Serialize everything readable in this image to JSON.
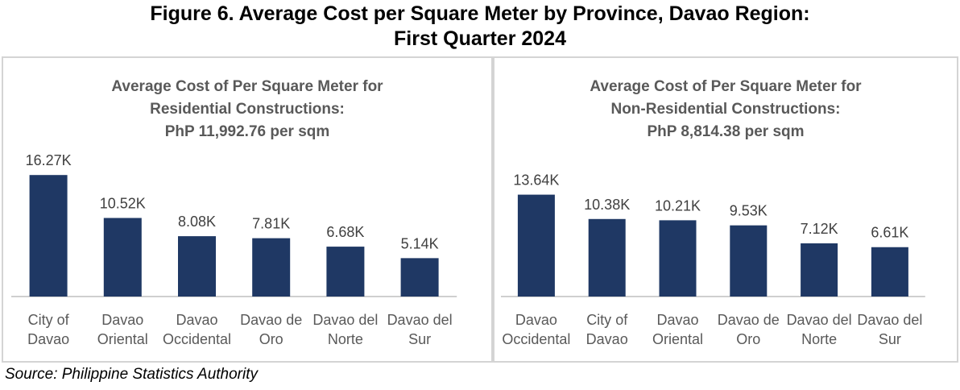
{
  "figure": {
    "title_line1": "Figure 6. Average Cost per Square Meter by Province, Davao Region:",
    "title_line2": "First Quarter 2024",
    "source": "Source: Philippine Statistics Authority"
  },
  "chart_data": [
    {
      "type": "bar",
      "title": [
        "Average Cost of Per Square Meter for",
        "Residential Constructions:",
        "PhP 11,992.76 per sqm"
      ],
      "categories": [
        [
          "City of",
          "Davao"
        ],
        [
          "Davao",
          "Oriental"
        ],
        [
          "Davao",
          "Occidental"
        ],
        [
          "Davao de",
          "Oro"
        ],
        [
          "Davao del",
          "Norte"
        ],
        [
          "Davao del",
          "Sur"
        ]
      ],
      "values": [
        16270,
        10520,
        8080,
        7810,
        6680,
        5140
      ],
      "data_labels": [
        "16.27K",
        "10.52K",
        "8.08K",
        "7.81K",
        "6.68K",
        "5.14K"
      ],
      "ylim": [
        0,
        20500
      ],
      "color": "#1f3864",
      "grid": false,
      "legend": "none"
    },
    {
      "type": "bar",
      "title": [
        "Average Cost of Per Square Meter for",
        "Non-Residential Constructions:",
        "PhP 8,814.38 per sqm"
      ],
      "categories": [
        [
          "Davao",
          "Occidental"
        ],
        [
          "City of",
          "Davao"
        ],
        [
          "Davao",
          "Oriental"
        ],
        [
          "Davao de",
          "Oro"
        ],
        [
          "Davao del",
          "Norte"
        ],
        [
          "Davao del",
          "Sur"
        ]
      ],
      "values": [
        13640,
        10380,
        10210,
        9530,
        7120,
        6610
      ],
      "data_labels": [
        "13.64K",
        "10.38K",
        "10.21K",
        "9.53K",
        "7.12K",
        "6.61K"
      ],
      "ylim": [
        0,
        20500
      ],
      "color": "#1f3864",
      "grid": false,
      "legend": "none"
    }
  ]
}
